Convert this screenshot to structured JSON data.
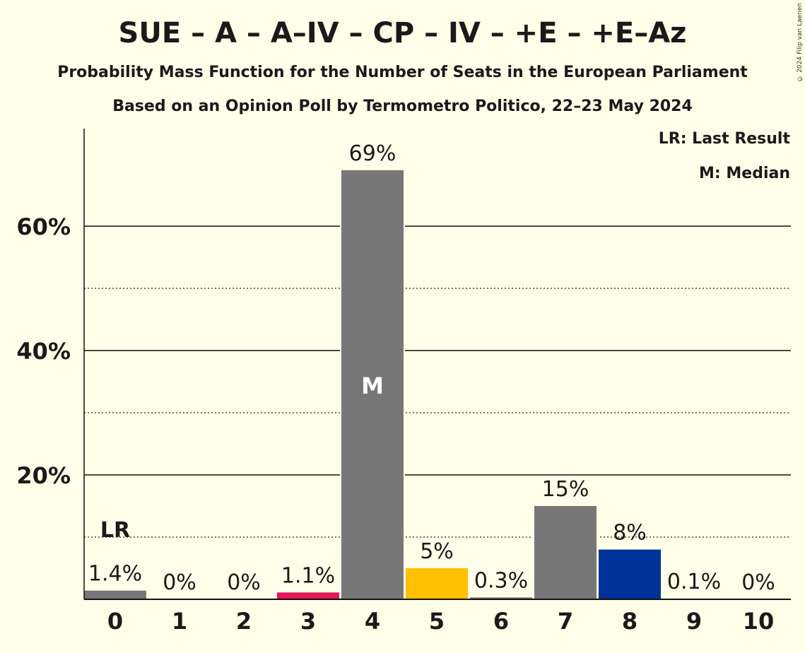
{
  "chart_data": {
    "type": "bar",
    "title": "SUE – A – A–IV – CP – IV – +E – +E–Az",
    "subtitle": "Probability Mass Function for the Number of Seats in the European Parliament",
    "subtitle2": "Based on an Opinion Poll by Termometro Politico, 22–23 May 2024",
    "copyright": "© 2024 Filip van Laenen",
    "categories": [
      "0",
      "1",
      "2",
      "3",
      "4",
      "5",
      "6",
      "7",
      "8",
      "9",
      "10"
    ],
    "values": [
      1.4,
      0,
      0,
      1.1,
      69,
      5,
      0.3,
      15,
      8,
      0.1,
      0
    ],
    "labels": [
      "1.4%",
      "0%",
      "0%",
      "1.1%",
      "69%",
      "5%",
      "0.3%",
      "15%",
      "8%",
      "0.1%",
      "0%"
    ],
    "bar_colors": [
      "#777777",
      "#777777",
      "#777777",
      "#E3175A",
      "#777777",
      "#FFC000",
      "#777777",
      "#777777",
      "#003399",
      "#777777",
      "#777777"
    ],
    "ylim": [
      0,
      75
    ],
    "yticks": [
      20,
      40,
      60
    ],
    "ytick_labels": [
      "20%",
      "40%",
      "60%"
    ],
    "minor_gridlines": [
      10,
      30,
      50
    ],
    "last_result_index": 0,
    "last_result_marker": "LR",
    "median_index": 4,
    "median_marker": "M",
    "legend": [
      "LR: Last Result",
      "M: Median"
    ],
    "xlabel": "",
    "ylabel": ""
  }
}
